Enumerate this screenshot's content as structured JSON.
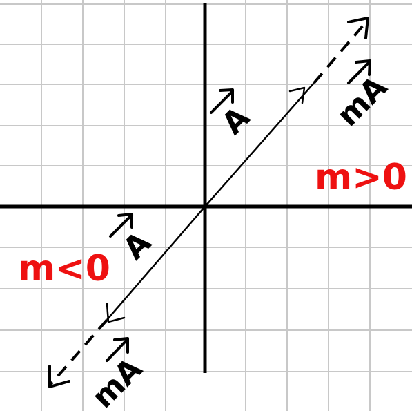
{
  "labels": {
    "vector_A_upper": "A",
    "vector_A_lower": "A",
    "vector_mA_upper": "mA",
    "vector_mA_lower": "mA",
    "condition_positive": "m>0",
    "condition_negative": "m<0"
  },
  "colors": {
    "grid": "#c8c8c8",
    "ink": "#000000",
    "accent": "#ee1111",
    "background": "#ffffff"
  }
}
